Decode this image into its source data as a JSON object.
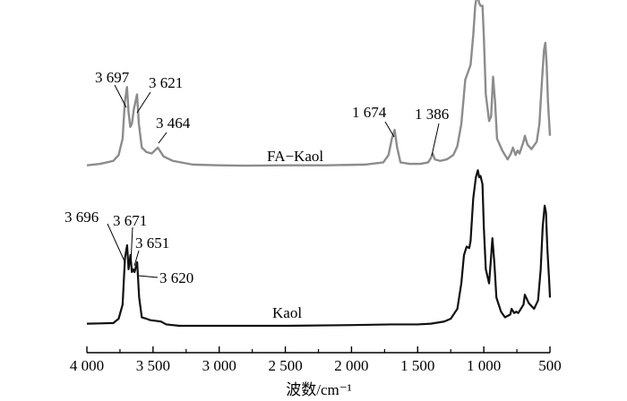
{
  "chart_data": {
    "type": "line",
    "title": "",
    "xlabel": "波数/cm⁻¹",
    "ylabel": "",
    "x_reversed": true,
    "xlim": [
      4000,
      500
    ],
    "grid": false,
    "x_ticks": [
      4000,
      3500,
      3000,
      2500,
      2000,
      1500,
      1000,
      500
    ],
    "x_tick_labels": [
      "4 000",
      "3 500",
      "3 000",
      "2 500",
      "2 000",
      "1 500",
      "1 000",
      "500"
    ],
    "series": [
      {
        "name": "FA−Kaol",
        "color": "#8c8c8c",
        "points": [
          [
            4000,
            0.02
          ],
          [
            3900,
            0.03
          ],
          [
            3800,
            0.05
          ],
          [
            3760,
            0.09
          ],
          [
            3730,
            0.2
          ],
          [
            3713,
            0.45
          ],
          [
            3697,
            0.55
          ],
          [
            3685,
            0.38
          ],
          [
            3672,
            0.28
          ],
          [
            3660,
            0.3
          ],
          [
            3645,
            0.4
          ],
          [
            3621,
            0.5
          ],
          [
            3607,
            0.3
          ],
          [
            3585,
            0.14
          ],
          [
            3550,
            0.11
          ],
          [
            3510,
            0.1
          ],
          [
            3464,
            0.14
          ],
          [
            3420,
            0.08
          ],
          [
            3350,
            0.05
          ],
          [
            3200,
            0.025
          ],
          [
            3000,
            0.02
          ],
          [
            2800,
            0.018
          ],
          [
            2500,
            0.02
          ],
          [
            2200,
            0.02
          ],
          [
            1900,
            0.025
          ],
          [
            1760,
            0.04
          ],
          [
            1720,
            0.09
          ],
          [
            1695,
            0.2
          ],
          [
            1674,
            0.26
          ],
          [
            1655,
            0.14
          ],
          [
            1630,
            0.04
          ],
          [
            1560,
            0.03
          ],
          [
            1480,
            0.03
          ],
          [
            1420,
            0.04
          ],
          [
            1400,
            0.07
          ],
          [
            1386,
            0.1
          ],
          [
            1370,
            0.06
          ],
          [
            1330,
            0.05
          ],
          [
            1280,
            0.06
          ],
          [
            1230,
            0.09
          ],
          [
            1200,
            0.15
          ],
          [
            1170,
            0.3
          ],
          [
            1140,
            0.6
          ],
          [
            1120,
            0.65
          ],
          [
            1100,
            0.7
          ],
          [
            1080,
            0.9
          ],
          [
            1065,
            1.1
          ],
          [
            1050,
            1.18
          ],
          [
            1035,
            1.12
          ],
          [
            1025,
            1.1
          ],
          [
            1010,
            1.1
          ],
          [
            1000,
            0.9
          ],
          [
            985,
            0.5
          ],
          [
            960,
            0.32
          ],
          [
            945,
            0.35
          ],
          [
            930,
            0.62
          ],
          [
            915,
            0.45
          ],
          [
            900,
            0.2
          ],
          [
            860,
            0.12
          ],
          [
            820,
            0.06
          ],
          [
            795,
            0.1
          ],
          [
            780,
            0.14
          ],
          [
            760,
            0.09
          ],
          [
            745,
            0.12
          ],
          [
            730,
            0.1
          ],
          [
            700,
            0.18
          ],
          [
            690,
            0.22
          ],
          [
            670,
            0.16
          ],
          [
            640,
            0.13
          ],
          [
            600,
            0.18
          ],
          [
            580,
            0.3
          ],
          [
            560,
            0.6
          ],
          [
            545,
            0.8
          ],
          [
            535,
            0.85
          ],
          [
            525,
            0.7
          ],
          [
            515,
            0.45
          ],
          [
            500,
            0.22
          ]
        ]
      },
      {
        "name": "Kaol",
        "color": "#111111",
        "points": [
          [
            4000,
            0.015
          ],
          [
            3900,
            0.017
          ],
          [
            3800,
            0.02
          ],
          [
            3760,
            0.05
          ],
          [
            3730,
            0.15
          ],
          [
            3712,
            0.48
          ],
          [
            3696,
            0.57
          ],
          [
            3685,
            0.4
          ],
          [
            3671,
            0.5
          ],
          [
            3660,
            0.38
          ],
          [
            3651,
            0.4
          ],
          [
            3640,
            0.38
          ],
          [
            3620,
            0.45
          ],
          [
            3605,
            0.2
          ],
          [
            3585,
            0.06
          ],
          [
            3550,
            0.05
          ],
          [
            3520,
            0.04
          ],
          [
            3480,
            0.035
          ],
          [
            3440,
            0.03
          ],
          [
            3400,
            0.01
          ],
          [
            3300,
            0.0
          ],
          [
            3000,
            0.0
          ],
          [
            2500,
            0.0
          ],
          [
            2000,
            0.005
          ],
          [
            1700,
            0.01
          ],
          [
            1500,
            0.01
          ],
          [
            1400,
            0.015
          ],
          [
            1300,
            0.03
          ],
          [
            1250,
            0.05
          ],
          [
            1200,
            0.12
          ],
          [
            1170,
            0.3
          ],
          [
            1150,
            0.5
          ],
          [
            1130,
            0.56
          ],
          [
            1110,
            0.55
          ],
          [
            1100,
            0.6
          ],
          [
            1080,
            0.9
          ],
          [
            1060,
            1.05
          ],
          [
            1045,
            1.1
          ],
          [
            1035,
            1.05
          ],
          [
            1025,
            1.06
          ],
          [
            1010,
            1.0
          ],
          [
            1000,
            0.7
          ],
          [
            985,
            0.4
          ],
          [
            960,
            0.3
          ],
          [
            948,
            0.45
          ],
          [
            935,
            0.62
          ],
          [
            920,
            0.44
          ],
          [
            905,
            0.2
          ],
          [
            870,
            0.1
          ],
          [
            840,
            0.06
          ],
          [
            800,
            0.08
          ],
          [
            790,
            0.12
          ],
          [
            770,
            0.09
          ],
          [
            755,
            0.1
          ],
          [
            740,
            0.09
          ],
          [
            700,
            0.15
          ],
          [
            690,
            0.22
          ],
          [
            660,
            0.16
          ],
          [
            620,
            0.12
          ],
          [
            590,
            0.18
          ],
          [
            570,
            0.4
          ],
          [
            555,
            0.7
          ],
          [
            540,
            0.85
          ],
          [
            530,
            0.8
          ],
          [
            520,
            0.55
          ],
          [
            505,
            0.3
          ],
          [
            500,
            0.2
          ]
        ]
      }
    ],
    "annotations": [
      {
        "text": "3 697",
        "series": "FA−Kaol"
      },
      {
        "text": "3 621",
        "series": "FA−Kaol"
      },
      {
        "text": "3 464",
        "series": "FA−Kaol"
      },
      {
        "text": "1 674",
        "series": "FA−Kaol"
      },
      {
        "text": "1 386",
        "series": "FA−Kaol"
      },
      {
        "text": "3 696",
        "series": "Kaol"
      },
      {
        "text": "3 671",
        "series": "Kaol"
      },
      {
        "text": "3 651",
        "series": "Kaol"
      },
      {
        "text": "3 620",
        "series": "Kaol"
      }
    ]
  }
}
